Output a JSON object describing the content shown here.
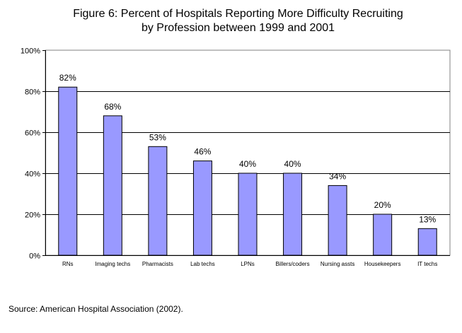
{
  "title_line1": "Figure 6: Percent of Hospitals Reporting More Difficulty Recruiting",
  "title_line2": "by Profession between 1999 and 2001",
  "source": "Source: American Hospital Association (2002).",
  "colors": {
    "bar": "#9999ff",
    "bar_stroke": "#000000",
    "grid": "#000000"
  },
  "chart_data": {
    "type": "bar",
    "title": "Figure 6: Percent of Hospitals Reporting More Difficulty Recruiting by Profession between 1999 and 2001",
    "xlabel": "",
    "ylabel": "",
    "categories": [
      "RNs",
      "Imaging techs",
      "Pharmacists",
      "Lab techs",
      "LPNs",
      "Billers/coders",
      "Nursing assts",
      "Housekeepers",
      "IT techs"
    ],
    "values": [
      82,
      68,
      53,
      46,
      40,
      40,
      34,
      20,
      13
    ],
    "data_labels": [
      "82%",
      "68%",
      "53%",
      "46%",
      "40%",
      "40%",
      "34%",
      "20%",
      "13%"
    ],
    "ylim": [
      0,
      100
    ],
    "yticks": [
      0,
      20,
      40,
      60,
      80,
      100
    ],
    "ytick_labels": [
      "0%",
      "20%",
      "40%",
      "60%",
      "80%",
      "100%"
    ],
    "grid": true,
    "legend": "none"
  }
}
